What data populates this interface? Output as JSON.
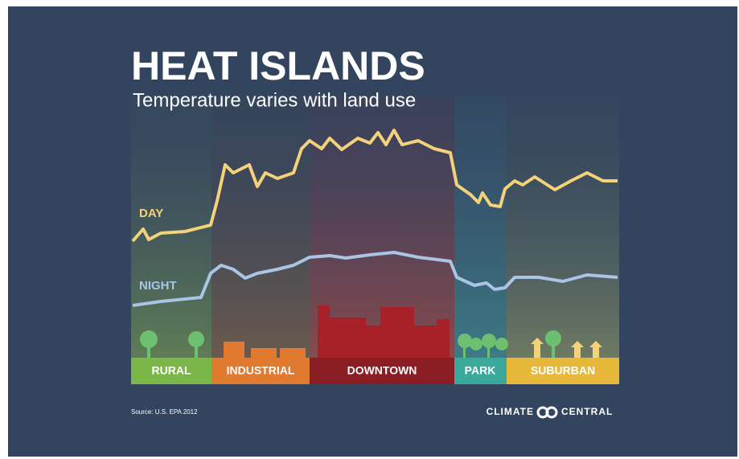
{
  "header": {
    "title": "HEAT ISLANDS",
    "subtitle": "Temperature varies with land use"
  },
  "lines": {
    "day": "DAY",
    "night": "NIGHT"
  },
  "zones": [
    {
      "label": "RURAL"
    },
    {
      "label": "INDUSTRIAL"
    },
    {
      "label": "DOWNTOWN"
    },
    {
      "label": "PARK"
    },
    {
      "label": "SUBURBAN"
    }
  ],
  "footer": {
    "source": "Source: U.S. EPA 2012",
    "brand_left": "CLIMATE",
    "brand_right": "CENTRAL"
  }
}
